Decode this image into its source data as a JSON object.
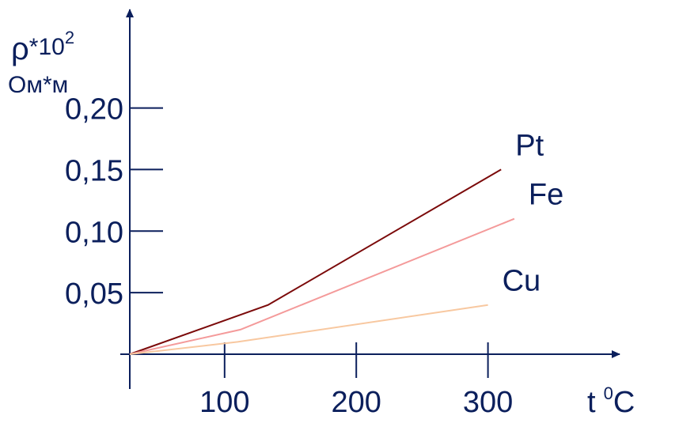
{
  "chart_data": {
    "type": "line",
    "ylabel": {
      "symbol": "ρ",
      "multiplier": "*10",
      "exponent": "2",
      "unit": "Ом*м"
    },
    "xlabel": {
      "symbol": "t",
      "exponent": "0",
      "unit": "C"
    },
    "x_ticks": [
      {
        "value": 100,
        "label": "100"
      },
      {
        "value": 200,
        "label": "200"
      },
      {
        "value": 300,
        "label": "300"
      }
    ],
    "y_ticks": [
      {
        "value": 0.05,
        "label": "0,05"
      },
      {
        "value": 0.1,
        "label": "0,10"
      },
      {
        "value": 0.15,
        "label": "0,15"
      },
      {
        "value": 0.2,
        "label": "0,20"
      }
    ],
    "xlim": [
      28,
      400
    ],
    "ylim": [
      0,
      0.28
    ],
    "grid": false,
    "series": [
      {
        "name": "Pt",
        "color": "#7b0a0a",
        "points": [
          [
            28,
            0
          ],
          [
            133,
            0.04
          ],
          [
            310,
            0.15
          ]
        ]
      },
      {
        "name": "Fe",
        "color": "#f49a9a",
        "points": [
          [
            28,
            0
          ],
          [
            112,
            0.02
          ],
          [
            320,
            0.11
          ]
        ]
      },
      {
        "name": "Cu",
        "color": "#f8c8a0",
        "points": [
          [
            28,
            0
          ],
          [
            110,
            0.01
          ],
          [
            300,
            0.04
          ]
        ]
      }
    ]
  }
}
